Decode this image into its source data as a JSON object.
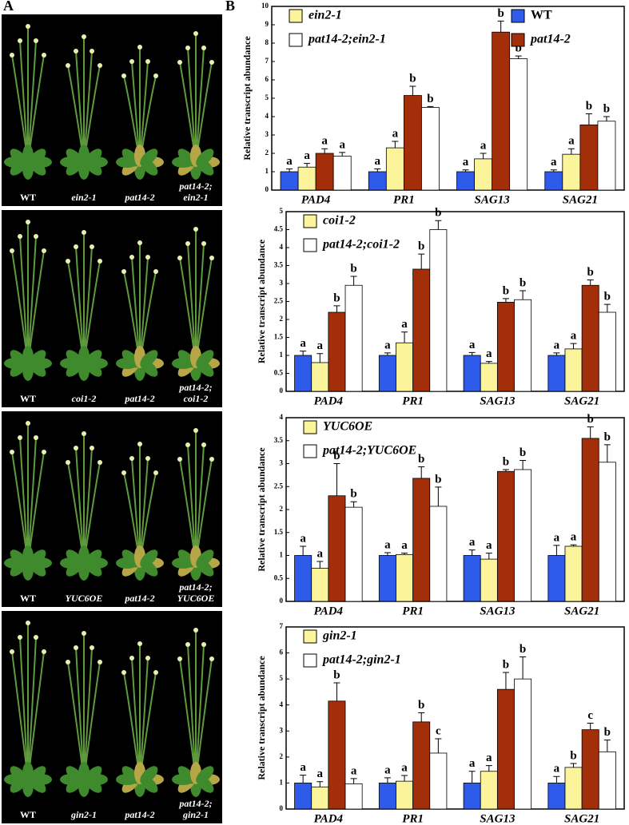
{
  "panel_labels": [
    "A",
    "B"
  ],
  "photo_labels": [
    [
      [
        "WT"
      ],
      [
        "ein2-1"
      ],
      [
        "pat14-2"
      ],
      [
        "pat14-2;",
        "ein2-1"
      ]
    ],
    [
      [
        "WT"
      ],
      [
        "coi1-2"
      ],
      [
        "pat14-2"
      ],
      [
        "pat14-2;",
        "coi1-2"
      ]
    ],
    [
      [
        "WT"
      ],
      [
        "YUC6OE"
      ],
      [
        "pat14-2"
      ],
      [
        "pat14-2;",
        "YUC6OE"
      ]
    ],
    [
      [
        "WT"
      ],
      [
        "gin2-1"
      ],
      [
        "pat14-2"
      ],
      [
        "pat14-2;",
        "gin2-1"
      ]
    ]
  ],
  "chart_data": [
    {
      "type": "bar",
      "y_label": "Relative transcript abundance",
      "categories": [
        "PAD4",
        "PR1",
        "SAG13",
        "SAG21"
      ],
      "ylim": [
        0,
        10
      ],
      "yticks": [
        0,
        1,
        2,
        3,
        4,
        5,
        6,
        7,
        8,
        9,
        10
      ],
      "series": [
        {
          "name": "WT",
          "color": "#2f5bea",
          "in_legend": true,
          "values": [
            1.0,
            1.0,
            1.0,
            1.0
          ],
          "errors": [
            0.15,
            0.15,
            0.1,
            0.1
          ],
          "significance": [
            "a",
            "a",
            "a",
            "a"
          ]
        },
        {
          "name": "ein2-1",
          "color": "#fbf49a",
          "in_legend": true,
          "values": [
            1.25,
            2.3,
            1.7,
            1.95
          ],
          "errors": [
            0.2,
            0.35,
            0.3,
            0.3
          ],
          "significance": [
            "a",
            "a",
            "a",
            "a"
          ]
        },
        {
          "name": "pat14-2",
          "color": "#a22f0a",
          "in_legend": true,
          "values": [
            2.0,
            5.15,
            8.6,
            3.55
          ],
          "errors": [
            0.25,
            0.5,
            0.6,
            0.6
          ],
          "significance": [
            "a",
            "b",
            "b",
            "b"
          ]
        },
        {
          "name": "pat14-2;ein2-1",
          "color": "#ffffff",
          "in_legend": true,
          "values": [
            1.85,
            4.5,
            7.15,
            3.75
          ],
          "errors": [
            0.2,
            0.05,
            0.15,
            0.25
          ],
          "significance": [
            "a",
            "b",
            "b",
            "b"
          ]
        }
      ]
    },
    {
      "type": "bar",
      "y_label": "Relative transcript abundance",
      "categories": [
        "PAD4",
        "PR1",
        "SAG13",
        "SAG21"
      ],
      "ylim": [
        0,
        5
      ],
      "yticks": [
        0,
        0.5,
        1,
        1.5,
        2,
        2.5,
        3,
        3.5,
        4,
        4.5,
        5
      ],
      "series": [
        {
          "name": "WT",
          "color": "#2f5bea",
          "in_legend": false,
          "values": [
            1.0,
            1.0,
            1.0,
            1.0
          ],
          "errors": [
            0.12,
            0.07,
            0.08,
            0.07
          ],
          "significance": [
            "a",
            "a",
            "a",
            "a"
          ]
        },
        {
          "name": "coi1-2",
          "color": "#fbf49a",
          "in_legend": true,
          "values": [
            0.8,
            1.35,
            0.78,
            1.18
          ],
          "errors": [
            0.25,
            0.3,
            0.05,
            0.15
          ],
          "significance": [
            "a",
            "a",
            "a",
            "a"
          ]
        },
        {
          "name": "pat14-2",
          "color": "#a22f0a",
          "in_legend": false,
          "values": [
            2.2,
            3.4,
            2.48,
            2.95
          ],
          "errors": [
            0.18,
            0.42,
            0.1,
            0.15
          ],
          "significance": [
            "b",
            "b",
            "b",
            "b"
          ]
        },
        {
          "name": "pat14-2;coi1-2",
          "color": "#ffffff",
          "in_legend": true,
          "values": [
            2.95,
            4.5,
            2.55,
            2.2
          ],
          "errors": [
            0.25,
            0.25,
            0.25,
            0.22
          ],
          "significance": [
            "b",
            "b",
            "b",
            "b"
          ]
        }
      ]
    },
    {
      "type": "bar",
      "y_label": "Relative transcript abundance",
      "categories": [
        "PAD4",
        "PR1",
        "SAG13",
        "SAG21"
      ],
      "ylim": [
        0,
        4
      ],
      "yticks": [
        0,
        0.5,
        1,
        1.5,
        2,
        2.5,
        3,
        3.5,
        4
      ],
      "series": [
        {
          "name": "WT",
          "color": "#2f5bea",
          "in_legend": false,
          "values": [
            1.0,
            1.0,
            1.0,
            1.0
          ],
          "errors": [
            0.2,
            0.06,
            0.12,
            0.22
          ],
          "significance": [
            "a",
            "a",
            "a",
            "a"
          ]
        },
        {
          "name": "YUC6OE",
          "color": "#fbf49a",
          "in_legend": true,
          "values": [
            0.72,
            1.02,
            0.92,
            1.2
          ],
          "errors": [
            0.15,
            0.03,
            0.13,
            0.03
          ],
          "significance": [
            "a",
            "a",
            "a",
            "a"
          ]
        },
        {
          "name": "pat14-2",
          "color": "#a22f0a",
          "in_legend": false,
          "values": [
            2.3,
            2.68,
            2.83,
            3.55
          ],
          "errors": [
            0.7,
            0.25,
            0.04,
            0.25
          ],
          "significance": [
            "b",
            "b",
            "b",
            "b"
          ]
        },
        {
          "name": "pat14-2;YUC6OE",
          "color": "#ffffff",
          "in_legend": true,
          "values": [
            2.05,
            2.07,
            2.87,
            3.03
          ],
          "errors": [
            0.12,
            0.42,
            0.2,
            0.38
          ],
          "significance": [
            "b",
            "b",
            "b",
            "b"
          ]
        }
      ]
    },
    {
      "type": "bar",
      "y_label": "Relative transcript abundance",
      "categories": [
        "PAD4",
        "PR1",
        "SAG13",
        "SAG21"
      ],
      "ylim": [
        0,
        7
      ],
      "yticks": [
        0,
        1,
        2,
        3,
        4,
        5,
        6,
        7
      ],
      "series": [
        {
          "name": "WT",
          "color": "#2f5bea",
          "in_legend": false,
          "values": [
            1.0,
            1.0,
            1.0,
            1.0
          ],
          "errors": [
            0.3,
            0.2,
            0.45,
            0.25
          ],
          "significance": [
            "a",
            "a",
            "a",
            "a"
          ]
        },
        {
          "name": "gin2-1",
          "color": "#fbf49a",
          "in_legend": true,
          "values": [
            0.85,
            1.07,
            1.45,
            1.6
          ],
          "errors": [
            0.2,
            0.22,
            0.22,
            0.15
          ],
          "significance": [
            "a",
            "a",
            "a",
            "b"
          ]
        },
        {
          "name": "pat14-2",
          "color": "#a22f0a",
          "in_legend": false,
          "values": [
            4.15,
            3.35,
            4.6,
            3.05
          ],
          "errors": [
            0.7,
            0.35,
            0.65,
            0.25
          ],
          "significance": [
            "b",
            "b",
            "b",
            "c"
          ]
        },
        {
          "name": "pat14-2;gin2-1",
          "color": "#ffffff",
          "in_legend": true,
          "values": [
            0.97,
            2.15,
            5.0,
            2.2
          ],
          "errors": [
            0.2,
            0.55,
            0.85,
            0.45
          ],
          "significance": [
            "a",
            "c",
            "b",
            "b"
          ]
        }
      ]
    }
  ]
}
